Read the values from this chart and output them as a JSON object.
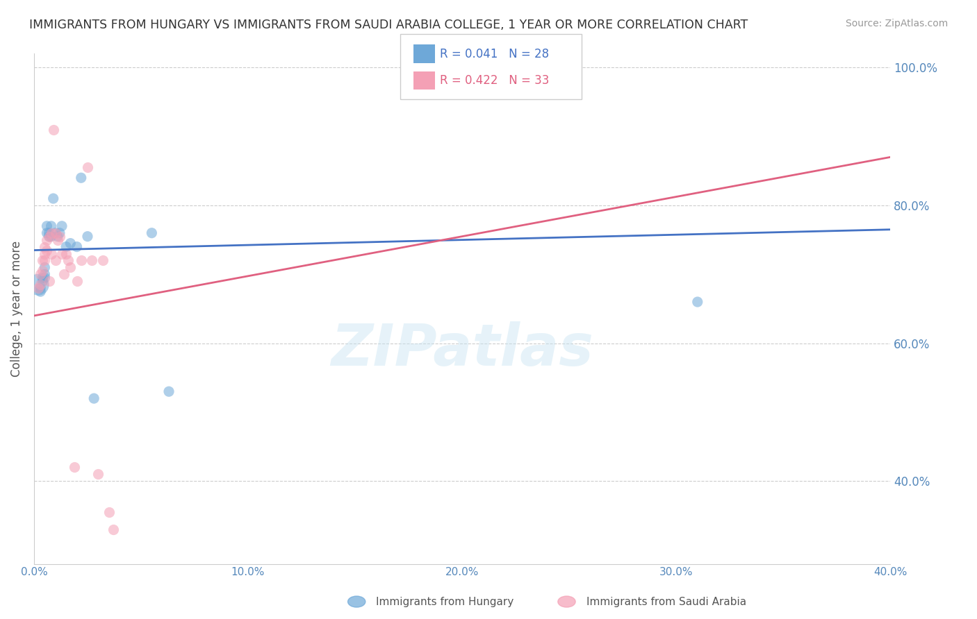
{
  "title": "IMMIGRANTS FROM HUNGARY VS IMMIGRANTS FROM SAUDI ARABIA COLLEGE, 1 YEAR OR MORE CORRELATION CHART",
  "source": "Source: ZipAtlas.com",
  "ylabel": "College, 1 year or more",
  "xlim": [
    0.0,
    0.4
  ],
  "ylim": [
    0.28,
    1.02
  ],
  "xticks": [
    0.0,
    0.1,
    0.2,
    0.3,
    0.4
  ],
  "xtick_labels": [
    "0.0%",
    "10.0%",
    "20.0%",
    "30.0%",
    "40.0%"
  ],
  "yticks": [
    0.4,
    0.6,
    0.8,
    1.0
  ],
  "ytick_labels": [
    "40.0%",
    "60.0%",
    "80.0%",
    "100.0%"
  ],
  "hungary_color": "#6ea8d8",
  "saudi_color": "#f4a0b5",
  "hungary_line_color": "#4472c4",
  "saudi_line_color": "#e06080",
  "hungary_R": 0.041,
  "hungary_N": 28,
  "saudi_R": 0.422,
  "saudi_N": 33,
  "legend_label_hungary": "Immigrants from Hungary",
  "legend_label_saudi": "Immigrants from Saudi Arabia",
  "watermark": "ZIPatlas",
  "hungary_x": [
    0.002,
    0.003,
    0.003,
    0.004,
    0.004,
    0.005,
    0.005,
    0.005,
    0.006,
    0.006,
    0.007,
    0.007,
    0.008,
    0.008,
    0.009,
    0.01,
    0.011,
    0.012,
    0.013,
    0.015,
    0.017,
    0.02,
    0.022,
    0.025,
    0.028,
    0.055,
    0.063,
    0.31
  ],
  "hungary_y": [
    0.685,
    0.675,
    0.68,
    0.69,
    0.695,
    0.7,
    0.695,
    0.71,
    0.76,
    0.77,
    0.755,
    0.76,
    0.755,
    0.77,
    0.81,
    0.76,
    0.755,
    0.76,
    0.77,
    0.74,
    0.745,
    0.74,
    0.84,
    0.755,
    0.52,
    0.76,
    0.53,
    0.66
  ],
  "hungary_sizes": [
    1,
    1,
    1,
    1,
    1,
    1,
    1,
    1,
    1,
    1,
    1,
    1,
    1,
    1,
    1,
    1,
    1,
    1,
    1,
    1,
    1,
    1,
    1,
    1,
    1,
    1,
    1,
    1
  ],
  "hungary_large_idx": -1,
  "saudi_x": [
    0.002,
    0.003,
    0.003,
    0.004,
    0.004,
    0.005,
    0.005,
    0.005,
    0.006,
    0.006,
    0.007,
    0.007,
    0.008,
    0.008,
    0.009,
    0.01,
    0.01,
    0.011,
    0.012,
    0.013,
    0.014,
    0.015,
    0.016,
    0.017,
    0.019,
    0.02,
    0.022,
    0.025,
    0.027,
    0.03,
    0.032,
    0.035,
    0.037
  ],
  "saudi_y": [
    0.68,
    0.685,
    0.7,
    0.705,
    0.72,
    0.72,
    0.73,
    0.74,
    0.735,
    0.75,
    0.755,
    0.69,
    0.73,
    0.76,
    0.91,
    0.76,
    0.72,
    0.75,
    0.755,
    0.73,
    0.7,
    0.73,
    0.72,
    0.71,
    0.42,
    0.69,
    0.72,
    0.855,
    0.72,
    0.41,
    0.72,
    0.355,
    0.33
  ],
  "hungary_trendline_x": [
    0.0,
    0.4
  ],
  "hungary_trendline_y": [
    0.735,
    0.765
  ],
  "saudi_trendline_x": [
    0.0,
    0.4
  ],
  "saudi_trendline_y": [
    0.64,
    0.87
  ]
}
